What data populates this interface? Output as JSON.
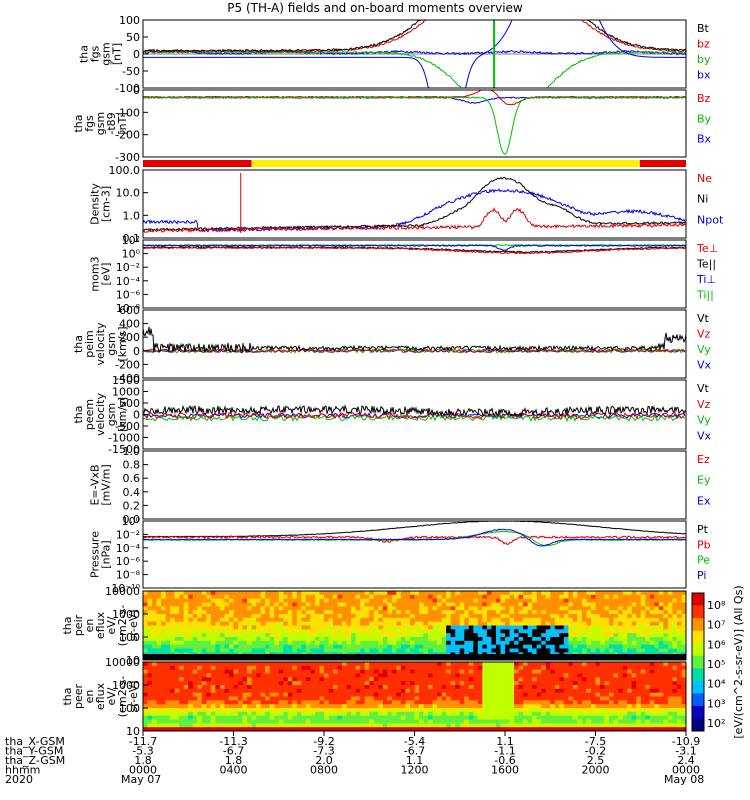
{
  "title": "P5 (TH-A) fields and on-board moments overview",
  "chart_data": [
    {
      "type": "line",
      "id": "fgs",
      "ylabel": [
        "tha",
        "fgs",
        "gsm",
        "[nT]"
      ],
      "yticks": [
        "100",
        "50",
        "0",
        "-50",
        "-100"
      ],
      "ylim": [
        -100,
        100
      ],
      "legend": [
        {
          "name": "Bt",
          "color": "#000000"
        },
        {
          "name": "bz",
          "color": "#e00000"
        },
        {
          "name": "by",
          "color": "#00c000"
        },
        {
          "name": "bx",
          "color": "#0000e0"
        }
      ]
    },
    {
      "type": "line",
      "id": "fgs_t89",
      "ylabel": [
        "tha",
        "fgs",
        "gsm",
        "-t89",
        "[nT]"
      ],
      "yticks": [
        "0",
        "-100",
        "-200",
        "-300"
      ],
      "ylim": [
        -350,
        40
      ],
      "legend": [
        {
          "name": "Bz",
          "color": "#e00000"
        },
        {
          "name": "By",
          "color": "#00c000"
        },
        {
          "name": "Bx",
          "color": "#0000e0"
        }
      ]
    },
    {
      "type": "bar",
      "id": "mode_bar",
      "segments": [
        {
          "from": 0,
          "to": 0.2,
          "color": "#e00000"
        },
        {
          "from": 0.2,
          "to": 0.915,
          "color": "#ffee00"
        },
        {
          "from": 0.915,
          "to": 1,
          "color": "#e00000"
        }
      ]
    },
    {
      "type": "line",
      "id": "density",
      "ylabel": [
        "Density",
        "[cm-3]"
      ],
      "yticks": [
        "100.0",
        "10.0",
        "1.0",
        "0.1"
      ],
      "ylim": [
        0.1,
        200
      ],
      "legend": [
        {
          "name": "Ne",
          "color": "#e00000"
        },
        {
          "name": "Ni",
          "color": "#000000"
        },
        {
          "name": "Npot",
          "color": "#0000e0"
        }
      ]
    },
    {
      "type": "line",
      "id": "temperature",
      "ylabel": [
        "mom3",
        "[eV]"
      ],
      "yticks": [
        "10²",
        "10⁰",
        "10⁻²",
        "10⁻⁴",
        "10⁻⁶",
        "10⁻⁸"
      ],
      "legend": [
        {
          "name": "Te⊥",
          "color": "#e00000"
        },
        {
          "name": "Te||",
          "color": "#000000"
        },
        {
          "name": "Ti⊥",
          "color": "#0000e0"
        },
        {
          "name": "Ti||",
          "color": "#00c000"
        }
      ]
    },
    {
      "type": "line",
      "id": "peim_velocity",
      "ylabel": [
        "tha",
        "peim",
        "velocity",
        "gsm",
        "[km/s]"
      ],
      "yticks": [
        "600",
        "400",
        "200",
        "0",
        "-200",
        "-400"
      ],
      "ylim": [
        -400,
        600
      ],
      "legend": [
        {
          "name": "Vt",
          "color": "#000000"
        },
        {
          "name": "Vz",
          "color": "#e00000"
        },
        {
          "name": "Vy",
          "color": "#00c000"
        },
        {
          "name": "Vx",
          "color": "#0000e0"
        }
      ]
    },
    {
      "type": "line",
      "id": "peem_velocity",
      "ylabel": [
        "tha",
        "peem",
        "velocity",
        "gsm",
        "[km/s]"
      ],
      "yticks": [
        "1500",
        "1000",
        "500",
        "0",
        "-500",
        "-1000",
        "-1500"
      ],
      "ylim": [
        -1500,
        1500
      ],
      "legend": [
        {
          "name": "Vt",
          "color": "#000000"
        },
        {
          "name": "Vz",
          "color": "#e00000"
        },
        {
          "name": "Vy",
          "color": "#00c000"
        },
        {
          "name": "Vx",
          "color": "#0000e0"
        }
      ]
    },
    {
      "type": "line",
      "id": "efield",
      "ylabel": [
        "E=-VxB",
        "[mV/m]"
      ],
      "yticks": [
        "1.0",
        "0.8",
        "0.6",
        "0.4",
        "0.2",
        "0.0"
      ],
      "ylim": [
        0,
        1
      ],
      "legend": [
        {
          "name": "Ez",
          "color": "#e00000"
        },
        {
          "name": "Ey",
          "color": "#00c000"
        },
        {
          "name": "Ex",
          "color": "#0000e0"
        }
      ]
    },
    {
      "type": "line",
      "id": "pressure",
      "ylabel": [
        "Pressure",
        "[nPa]"
      ],
      "yticks": [
        "10⁰",
        "10⁻²",
        "10⁻⁴",
        "10⁻⁶",
        "10⁻⁸",
        "10⁻¹⁰"
      ],
      "legend": [
        {
          "name": "Pt",
          "color": "#000000"
        },
        {
          "name": "Pb",
          "color": "#e00000"
        },
        {
          "name": "Pe",
          "color": "#00c000"
        },
        {
          "name": "Pi",
          "color": "#0000e0"
        }
      ]
    },
    {
      "type": "heatmap",
      "id": "peir_en_eflux",
      "ylabel": [
        "tha",
        "peir",
        "en",
        "eflux",
        "eV/",
        "(cm2-s-",
        "sr-eV)"
      ],
      "yticks": [
        "10000",
        "1000",
        "100",
        "10"
      ]
    },
    {
      "type": "heatmap",
      "id": "peer_en_eflux",
      "ylabel": [
        "tha",
        "peer",
        "en",
        "eflux",
        "eV/",
        "(cm2-s-",
        "sr-eV)"
      ],
      "yticks": [
        "10000",
        "1000",
        "100",
        "10"
      ]
    }
  ],
  "colorbar": {
    "label": "[eV/(cm^2-s-sr-eV)] (All Qs)",
    "ticks": [
      "10⁸",
      "10⁷",
      "10⁶",
      "10⁵",
      "10⁴",
      "10³",
      "10²"
    ]
  },
  "x_axis": {
    "rows": [
      {
        "label": "tha_X-GSM",
        "values": [
          "-11.7",
          "-11.3",
          "-9.2",
          "-5.4",
          "1.1",
          "-7.5",
          "-10.9"
        ]
      },
      {
        "label": "tha_Y-GSM",
        "values": [
          "-5.3",
          "-6.7",
          "-7.3",
          "-6.7",
          "-1.1",
          "-0.2",
          "-3.1"
        ]
      },
      {
        "label": "tha_Z-GSM",
        "values": [
          "1.8",
          "1.8",
          "2.0",
          "1.1",
          "-0.6",
          "2.5",
          "2.4"
        ]
      },
      {
        "label": "hhmm",
        "values": [
          "0000",
          "0400",
          "0800",
          "1200",
          "1600",
          "2000",
          "0000"
        ]
      }
    ],
    "year": "2020",
    "date_start": "May 07",
    "date_end": "May 08"
  }
}
